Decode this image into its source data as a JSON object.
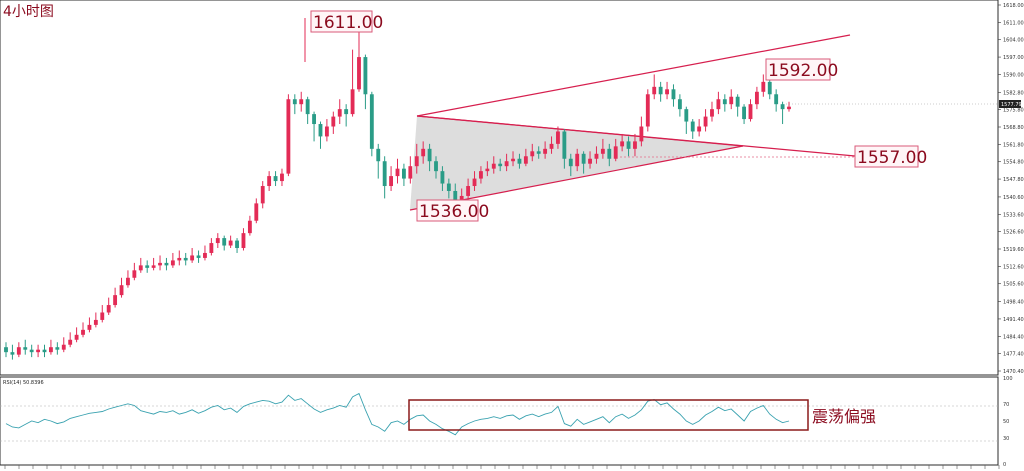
{
  "chart_data": [
    {
      "type": "candlestick",
      "title": "4小时图",
      "ylim": [
        1470.0,
        1618.0
      ],
      "y_ticks": [
        "1618.00",
        "1611.00",
        "1604.00",
        "1597.00",
        "1590.00",
        "1582.80",
        "1575.80",
        "1568.80",
        "1561.80",
        "1554.80",
        "1547.80",
        "1540.60",
        "1533.60",
        "1526.60",
        "1519.60",
        "1512.60",
        "1505.60",
        "1498.40",
        "1491.40",
        "1484.40",
        "1477.40",
        "1470.40"
      ],
      "current_price_label": "1577.79",
      "current_price": 1577.8,
      "candles": [
        [
          1480,
          1478,
          1482,
          1476
        ],
        [
          1478,
          1477,
          1481,
          1475
        ],
        [
          1477,
          1480,
          1482,
          1476
        ],
        [
          1480,
          1479,
          1483,
          1477
        ],
        [
          1479,
          1478,
          1481,
          1476
        ],
        [
          1478,
          1479,
          1481,
          1476
        ],
        [
          1479,
          1478,
          1481,
          1476
        ],
        [
          1478,
          1480,
          1483,
          1477
        ],
        [
          1480,
          1479,
          1482,
          1477
        ],
        [
          1479,
          1481,
          1484,
          1478
        ],
        [
          1481,
          1483,
          1486,
          1480
        ],
        [
          1483,
          1485,
          1488,
          1482
        ],
        [
          1485,
          1487,
          1490,
          1484
        ],
        [
          1487,
          1489,
          1492,
          1486
        ],
        [
          1489,
          1491,
          1494,
          1488
        ],
        [
          1491,
          1494,
          1497,
          1490
        ],
        [
          1494,
          1497,
          1500,
          1493
        ],
        [
          1497,
          1501,
          1504,
          1496
        ],
        [
          1501,
          1505,
          1508,
          1500
        ],
        [
          1505,
          1508,
          1511,
          1504
        ],
        [
          1508,
          1511,
          1514,
          1507
        ],
        [
          1511,
          1513,
          1516,
          1510
        ],
        [
          1513,
          1512,
          1515,
          1510
        ],
        [
          1512,
          1513,
          1516,
          1511
        ],
        [
          1513,
          1514,
          1517,
          1511
        ],
        [
          1514,
          1513,
          1516,
          1511
        ],
        [
          1513,
          1515,
          1518,
          1512
        ],
        [
          1515,
          1516,
          1519,
          1513
        ],
        [
          1516,
          1515,
          1518,
          1513
        ],
        [
          1515,
          1517,
          1520,
          1514
        ],
        [
          1517,
          1516,
          1519,
          1514
        ],
        [
          1516,
          1518,
          1521,
          1515
        ],
        [
          1518,
          1522,
          1524,
          1517
        ],
        [
          1522,
          1524,
          1526,
          1520
        ],
        [
          1524,
          1521,
          1525,
          1519
        ],
        [
          1521,
          1523,
          1525,
          1520
        ],
        [
          1523,
          1520,
          1524,
          1518
        ],
        [
          1520,
          1526,
          1528,
          1519
        ],
        [
          1526,
          1531,
          1533,
          1525
        ],
        [
          1531,
          1538,
          1540,
          1530
        ],
        [
          1538,
          1545,
          1547,
          1536
        ],
        [
          1545,
          1549,
          1551,
          1543
        ],
        [
          1549,
          1547,
          1551,
          1545
        ],
        [
          1547,
          1550,
          1552,
          1545
        ],
        [
          1550,
          1580,
          1582,
          1549
        ],
        [
          1580,
          1578,
          1582,
          1574
        ],
        [
          1578,
          1580,
          1583,
          1575
        ],
        [
          1580,
          1574,
          1581,
          1570
        ],
        [
          1574,
          1570,
          1575,
          1563
        ],
        [
          1570,
          1565,
          1571,
          1560
        ],
        [
          1565,
          1569,
          1572,
          1563
        ],
        [
          1569,
          1573,
          1575,
          1566
        ],
        [
          1573,
          1576,
          1580,
          1570
        ],
        [
          1576,
          1574,
          1578,
          1569
        ],
        [
          1574,
          1584,
          1600,
          1573
        ],
        [
          1584,
          1597,
          1611,
          1583
        ],
        [
          1597,
          1582,
          1598,
          1576
        ],
        [
          1582,
          1560,
          1583,
          1557
        ],
        [
          1560,
          1555,
          1562,
          1548
        ],
        [
          1555,
          1545,
          1557,
          1540
        ],
        [
          1545,
          1549,
          1553,
          1543
        ],
        [
          1549,
          1552,
          1556,
          1546
        ],
        [
          1552,
          1548,
          1554,
          1545
        ],
        [
          1548,
          1553,
          1557,
          1546
        ],
        [
          1553,
          1557,
          1562,
          1550
        ],
        [
          1557,
          1560,
          1563,
          1554
        ],
        [
          1560,
          1555,
          1562,
          1551
        ],
        [
          1555,
          1551,
          1557,
          1548
        ],
        [
          1551,
          1546,
          1553,
          1543
        ],
        [
          1546,
          1543,
          1548,
          1540
        ],
        [
          1543,
          1537,
          1546,
          1535
        ],
        [
          1537,
          1541,
          1544,
          1536
        ],
        [
          1541,
          1545,
          1548,
          1539
        ],
        [
          1545,
          1548,
          1551,
          1543
        ],
        [
          1548,
          1551,
          1553,
          1546
        ],
        [
          1551,
          1552,
          1555,
          1549
        ],
        [
          1552,
          1554,
          1557,
          1550
        ],
        [
          1554,
          1553,
          1556,
          1551
        ],
        [
          1553,
          1555,
          1558,
          1551
        ],
        [
          1555,
          1556,
          1559,
          1553
        ],
        [
          1556,
          1554,
          1558,
          1552
        ],
        [
          1554,
          1557,
          1560,
          1553
        ],
        [
          1557,
          1559,
          1562,
          1555
        ],
        [
          1559,
          1558,
          1561,
          1556
        ],
        [
          1558,
          1560,
          1563,
          1556
        ],
        [
          1560,
          1562,
          1565,
          1558
        ],
        [
          1562,
          1567,
          1569,
          1560
        ],
        [
          1567,
          1556,
          1568,
          1552
        ],
        [
          1556,
          1553,
          1558,
          1549
        ],
        [
          1553,
          1558,
          1560,
          1551
        ],
        [
          1558,
          1554,
          1559,
          1550
        ],
        [
          1554,
          1556,
          1559,
          1552
        ],
        [
          1556,
          1558,
          1561,
          1554
        ],
        [
          1558,
          1560,
          1564,
          1556
        ],
        [
          1560,
          1556,
          1562,
          1553
        ],
        [
          1556,
          1561,
          1564,
          1555
        ],
        [
          1561,
          1563,
          1566,
          1559
        ],
        [
          1563,
          1560,
          1565,
          1557
        ],
        [
          1560,
          1563,
          1566,
          1557
        ],
        [
          1563,
          1569,
          1573,
          1561
        ],
        [
          1569,
          1582,
          1584,
          1567
        ],
        [
          1582,
          1585,
          1590,
          1580
        ],
        [
          1585,
          1582,
          1587,
          1579
        ],
        [
          1582,
          1584,
          1587,
          1580
        ],
        [
          1584,
          1580,
          1586,
          1577
        ],
        [
          1580,
          1576,
          1582,
          1573
        ],
        [
          1576,
          1571,
          1577,
          1566
        ],
        [
          1571,
          1567,
          1572,
          1564
        ],
        [
          1567,
          1569,
          1572,
          1565
        ],
        [
          1569,
          1573,
          1576,
          1567
        ],
        [
          1573,
          1576,
          1579,
          1571
        ],
        [
          1576,
          1580,
          1583,
          1574
        ],
        [
          1580,
          1578,
          1582,
          1575
        ],
        [
          1578,
          1581,
          1584,
          1576
        ],
        [
          1581,
          1577,
          1582,
          1573
        ],
        [
          1577,
          1572,
          1578,
          1570
        ],
        [
          1572,
          1578,
          1580,
          1571
        ],
        [
          1578,
          1583,
          1585,
          1576
        ],
        [
          1583,
          1587,
          1590,
          1581
        ],
        [
          1587,
          1582,
          1592,
          1580
        ],
        [
          1582,
          1578,
          1584,
          1575
        ],
        [
          1578,
          1576,
          1579,
          1570
        ],
        [
          1576,
          1577,
          1579,
          1575
        ]
      ],
      "rsi": {
        "label": "RSI(14) 50.8396",
        "ylim": [
          0,
          100
        ],
        "y_ticks": [
          "100",
          "70",
          "50",
          "30",
          "0"
        ],
        "levels": [
          70,
          30
        ],
        "values": [
          47,
          43,
          42,
          46,
          50,
          48,
          52,
          50,
          47,
          49,
          53,
          55,
          57,
          59,
          60,
          61,
          64,
          66,
          68,
          70,
          68,
          62,
          60,
          58,
          61,
          60,
          62,
          58,
          60,
          63,
          59,
          62,
          66,
          68,
          63,
          65,
          60,
          67,
          70,
          72,
          74,
          73,
          70,
          72,
          80,
          74,
          76,
          70,
          64,
          60,
          63,
          65,
          68,
          66,
          78,
          82,
          63,
          46,
          43,
          38,
          48,
          50,
          46,
          52,
          56,
          57,
          50,
          46,
          41,
          38,
          34,
          43,
          47,
          50,
          52,
          53,
          55,
          53,
          56,
          57,
          52,
          56,
          58,
          55,
          58,
          60,
          67,
          47,
          44,
          52,
          46,
          49,
          52,
          55,
          48,
          55,
          58,
          53,
          57,
          63,
          73,
          75,
          69,
          71,
          64,
          58,
          50,
          46,
          50,
          57,
          61,
          66,
          62,
          64,
          57,
          50,
          61,
          65,
          68,
          58,
          52,
          48,
          50
        ]
      },
      "annotations": {
        "peak": "1611.00",
        "recent_high": "1592.00",
        "support": "1557.00",
        "low": "1536.00",
        "rsi_note": "震荡偏强"
      }
    }
  ],
  "colors": {
    "up": "#e32b56",
    "down": "#2a9c87",
    "trendline": "#d61f4e",
    "annotation_text": "#8b0a1e",
    "rsi_line": "#3aa2b0",
    "triangle_fill": "#c6c6c6"
  }
}
